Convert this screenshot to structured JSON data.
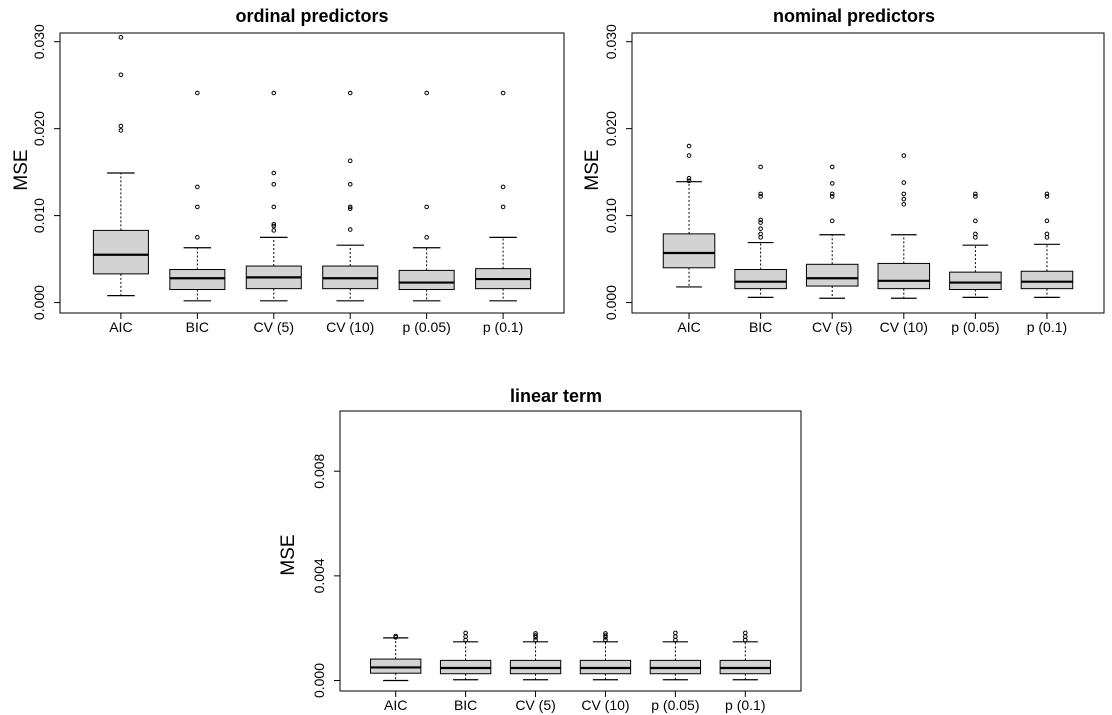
{
  "chart_data": [
    {
      "type": "boxplot",
      "title": "ordinal predictors",
      "ylabel": "MSE",
      "categories": [
        "AIC",
        "BIC",
        "CV (5)",
        "CV (10)",
        "p (0.05)",
        "p (0.1)"
      ],
      "ylim": [
        -0.0012,
        0.031
      ],
      "yticks": [
        0.0,
        0.01,
        0.02,
        0.03
      ],
      "ytick_labels": [
        "0.000",
        "0.010",
        "0.020",
        "0.030"
      ],
      "fill_color": "#d3d3d3",
      "boxes": [
        {
          "whisker_low": 0.0008,
          "q1": 0.0033,
          "median": 0.0055,
          "q3": 0.0083,
          "whisker_high": 0.0149,
          "outliers": [
            0.0198,
            0.0203,
            0.0262,
            0.0305
          ]
        },
        {
          "whisker_low": 0.0002,
          "q1": 0.0015,
          "median": 0.0028,
          "q3": 0.0038,
          "whisker_high": 0.0063,
          "outliers": [
            0.0075,
            0.011,
            0.0133,
            0.0241
          ]
        },
        {
          "whisker_low": 0.0002,
          "q1": 0.0016,
          "median": 0.0029,
          "q3": 0.0042,
          "whisker_high": 0.0075,
          "outliers": [
            0.0083,
            0.0088,
            0.009,
            0.011,
            0.0136,
            0.0149,
            0.0241
          ]
        },
        {
          "whisker_low": 0.0002,
          "q1": 0.0016,
          "median": 0.0028,
          "q3": 0.0042,
          "whisker_high": 0.0066,
          "outliers": [
            0.0084,
            0.0108,
            0.011,
            0.0136,
            0.0163,
            0.0241
          ]
        },
        {
          "whisker_low": 0.0002,
          "q1": 0.0015,
          "median": 0.0023,
          "q3": 0.0037,
          "whisker_high": 0.0063,
          "outliers": [
            0.0075,
            0.011,
            0.0241
          ]
        },
        {
          "whisker_low": 0.0002,
          "q1": 0.0016,
          "median": 0.0027,
          "q3": 0.0039,
          "whisker_high": 0.0075,
          "outliers": [
            0.011,
            0.0133,
            0.0241
          ]
        }
      ]
    },
    {
      "type": "boxplot",
      "title": "nominal predictors",
      "ylabel": "MSE",
      "categories": [
        "AIC",
        "BIC",
        "CV (5)",
        "CV (10)",
        "p (0.05)",
        "p (0.1)"
      ],
      "ylim": [
        -0.0012,
        0.031
      ],
      "yticks": [
        0.0,
        0.01,
        0.02,
        0.03
      ],
      "ytick_labels": [
        "0.000",
        "0.010",
        "0.020",
        "0.030"
      ],
      "fill_color": "#d3d3d3",
      "boxes": [
        {
          "whisker_low": 0.0018,
          "q1": 0.004,
          "median": 0.0057,
          "q3": 0.0079,
          "whisker_high": 0.0139,
          "outliers": [
            0.014,
            0.0143,
            0.0169,
            0.018
          ]
        },
        {
          "whisker_low": 0.0006,
          "q1": 0.0016,
          "median": 0.0024,
          "q3": 0.0038,
          "whisker_high": 0.0069,
          "outliers": [
            0.0075,
            0.0079,
            0.0085,
            0.0092,
            0.0095,
            0.0122,
            0.0125,
            0.0156
          ]
        },
        {
          "whisker_low": 0.0005,
          "q1": 0.0019,
          "median": 0.0028,
          "q3": 0.0044,
          "whisker_high": 0.0078,
          "outliers": [
            0.0094,
            0.0122,
            0.0125,
            0.0137,
            0.0156
          ]
        },
        {
          "whisker_low": 0.0005,
          "q1": 0.0016,
          "median": 0.0025,
          "q3": 0.0045,
          "whisker_high": 0.0078,
          "outliers": [
            0.0113,
            0.0119,
            0.0125,
            0.0138,
            0.0169
          ]
        },
        {
          "whisker_low": 0.0006,
          "q1": 0.0015,
          "median": 0.0023,
          "q3": 0.0035,
          "whisker_high": 0.0066,
          "outliers": [
            0.0075,
            0.0079,
            0.0094,
            0.0122,
            0.0125
          ]
        },
        {
          "whisker_low": 0.0006,
          "q1": 0.0016,
          "median": 0.0024,
          "q3": 0.0036,
          "whisker_high": 0.0067,
          "outliers": [
            0.0075,
            0.0079,
            0.0094,
            0.0122,
            0.0125
          ]
        }
      ]
    },
    {
      "type": "boxplot",
      "title": "linear term",
      "ylabel": "MSE",
      "categories": [
        "AIC",
        "BIC",
        "CV (5)",
        "CV (10)",
        "p (0.05)",
        "p (0.1)"
      ],
      "ylim": [
        -0.0004,
        0.0103
      ],
      "yticks": [
        0.0,
        0.004,
        0.008
      ],
      "ytick_labels": [
        "0.000",
        "0.004",
        "0.008"
      ],
      "fill_color": "#d3d3d3",
      "boxes": [
        {
          "whisker_low": 0.0,
          "q1": 0.00028,
          "median": 0.0005,
          "q3": 0.00082,
          "whisker_high": 0.00163,
          "outliers": [
            0.00165,
            0.0017
          ]
        },
        {
          "whisker_low": 3e-05,
          "q1": 0.00026,
          "median": 0.00048,
          "q3": 0.00077,
          "whisker_high": 0.00148,
          "outliers": [
            0.00155,
            0.00168,
            0.00182
          ]
        },
        {
          "whisker_low": 3e-05,
          "q1": 0.00026,
          "median": 0.00048,
          "q3": 0.00077,
          "whisker_high": 0.00148,
          "outliers": [
            0.00155,
            0.00165,
            0.00172,
            0.0018
          ]
        },
        {
          "whisker_low": 3e-05,
          "q1": 0.00026,
          "median": 0.00048,
          "q3": 0.00077,
          "whisker_high": 0.00148,
          "outliers": [
            0.00155,
            0.00165,
            0.00172,
            0.0018
          ]
        },
        {
          "whisker_low": 3e-05,
          "q1": 0.00026,
          "median": 0.00048,
          "q3": 0.00077,
          "whisker_high": 0.00148,
          "outliers": [
            0.00155,
            0.00168,
            0.00182
          ]
        },
        {
          "whisker_low": 3e-05,
          "q1": 0.00026,
          "median": 0.00048,
          "q3": 0.00077,
          "whisker_high": 0.00148,
          "outliers": [
            0.00155,
            0.00168,
            0.00182
          ]
        }
      ]
    }
  ]
}
